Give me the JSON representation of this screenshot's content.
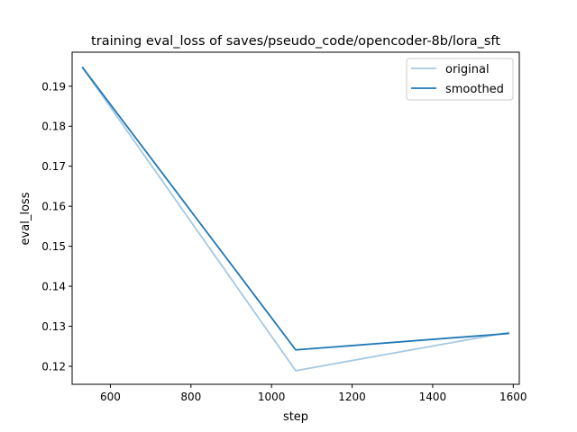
{
  "chart_data": {
    "type": "line",
    "title": "training eval_loss of saves/pseudo_code/opencoder-8b/lora_sft",
    "xlabel": "step",
    "ylabel": "eval_loss",
    "xlim": [
      505,
      1615
    ],
    "ylim": [
      0.1155,
      0.1985
    ],
    "xticks": [
      600,
      800,
      1000,
      1200,
      1400,
      1600
    ],
    "yticks": [
      0.12,
      0.13,
      0.14,
      0.15,
      0.16,
      0.17,
      0.18,
      0.19
    ],
    "xtick_labels": [
      "600",
      "800",
      "1000",
      "1200",
      "1400",
      "1600"
    ],
    "ytick_labels": [
      "0.12",
      "0.13",
      "0.14",
      "0.15",
      "0.16",
      "0.17",
      "0.18",
      "0.19"
    ],
    "grid": false,
    "legend_position": "top-right",
    "series": [
      {
        "name": "original",
        "color": "#a6c8e2",
        "x": [
          530,
          1060,
          1590
        ],
        "y": [
          0.1948,
          0.1189,
          0.1285
        ]
      },
      {
        "name": "smoothed",
        "color": "#1f77b4",
        "x": [
          530,
          1060,
          1590
        ],
        "y": [
          0.1948,
          0.1241,
          0.1282
        ]
      }
    ]
  }
}
